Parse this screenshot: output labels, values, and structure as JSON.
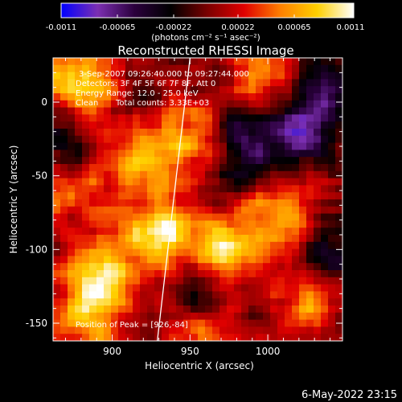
{
  "colorbar": {
    "ticks": [
      "-0.0011",
      "-0.00065",
      "-0.00022",
      "0.00022",
      "0.00065",
      "0.0011"
    ],
    "unit_label": "(photons cm⁻² s⁻¹ asec⁻²)"
  },
  "chart_data": {
    "type": "heatmap",
    "title": "Reconstructed RHESSI Image",
    "xlabel": "Heliocentric X (arcsec)",
    "ylabel": "Heliocentric Y (arcsec)",
    "xlim": [
      862,
      1048
    ],
    "ylim": [
      -162,
      30
    ],
    "x_ticks": [
      "900",
      "950",
      "1000"
    ],
    "y_ticks": [
      "0",
      "-50",
      "-100",
      "-150"
    ],
    "color_range": [
      -0.0011,
      0.0011
    ],
    "colormap": [
      "#0000ff",
      "#7c2fb2",
      "#2b003d",
      "#000000",
      "#7a0000",
      "#e00000",
      "#ff8000",
      "#ffd000",
      "#ffffff"
    ],
    "annotations": [
      "3-Sep-2007 09:26:40.000 to 09:27:44.000",
      "Detectors: 3F 4F 5F 6F 7F 8F, Att 0",
      "Energy Range: 12.0 - 25.0 keV",
      "Clean",
      "Total counts: 3.33E+03",
      "Position of Peak = [926,-84]"
    ],
    "peak": [
      926,
      -84
    ],
    "limb_line": [
      [
        950,
        30
      ],
      [
        929,
        -162
      ]
    ],
    "hotspots": [
      {
        "x": 932,
        "y": -88,
        "intensity": 1.0
      },
      {
        "x": 880,
        "y": 15,
        "intensity": 0.85
      },
      {
        "x": 975,
        "y": -100,
        "intensity": 0.85
      },
      {
        "x": 895,
        "y": -115,
        "intensity": 0.8
      },
      {
        "x": 885,
        "y": -145,
        "intensity": 0.7
      },
      {
        "x": 1012,
        "y": -75,
        "intensity": 0.65
      },
      {
        "x": 948,
        "y": -25,
        "intensity": 0.6
      },
      {
        "x": 1000,
        "y": 15,
        "intensity": 0.5
      },
      {
        "x": 1025,
        "y": -135,
        "intensity": 0.55
      },
      {
        "x": 960,
        "y": -150,
        "intensity": 0.55
      },
      {
        "x": 912,
        "y": -40,
        "intensity": 0.6
      },
      {
        "x": 870,
        "y": -60,
        "intensity": 0.55
      }
    ],
    "coldspots": [
      {
        "x": 1018,
        "y": -20,
        "intensity": -0.6
      },
      {
        "x": 985,
        "y": -30,
        "intensity": -0.45
      },
      {
        "x": 870,
        "y": -30,
        "intensity": -0.4
      },
      {
        "x": 960,
        "y": -130,
        "intensity": -0.45
      },
      {
        "x": 1040,
        "y": -105,
        "intensity": -0.5
      },
      {
        "x": 1035,
        "y": 5,
        "intensity": -0.5
      }
    ]
  },
  "footer": {
    "timestamp": "6-May-2022 23:15"
  }
}
